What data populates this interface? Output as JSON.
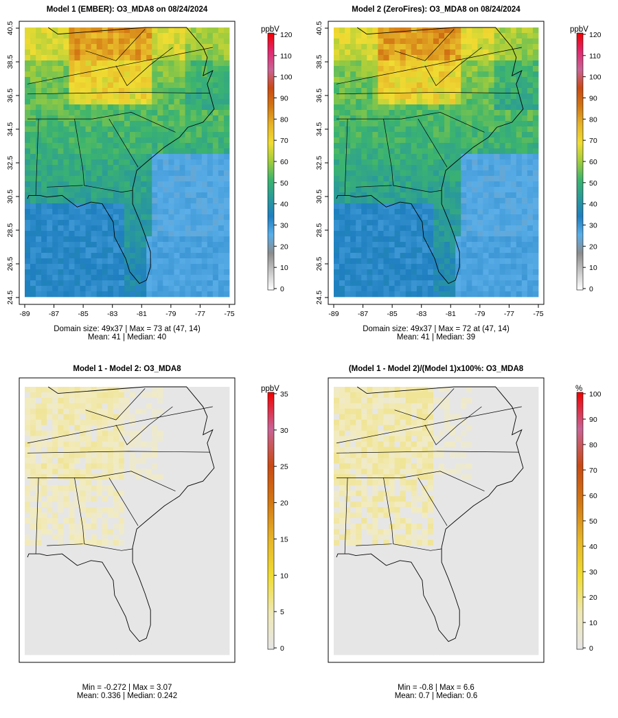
{
  "panels": [
    {
      "id": "p1",
      "title": "Model 1 (EMBER): O3_MDA8 on 08/24/2024",
      "stats_line1": "Domain size: 49x37 | Max = 73 at (47, 14)",
      "stats_line2": "Mean: 41 |  Median: 40",
      "colorbar_unit": "ppbV",
      "colorbar_ticks": [
        "0",
        "10",
        "20",
        "30",
        "40",
        "50",
        "60",
        "70",
        "80",
        "90",
        "100",
        "110",
        "120"
      ],
      "colorbar_max": 120
    },
    {
      "id": "p2",
      "title": "Model 2 (ZeroFires): O3_MDA8 on 08/24/2024",
      "stats_line1": "Domain size: 49x37 | Max = 72 at (47, 14)",
      "stats_line2": "Mean: 41 |  Median: 39",
      "colorbar_unit": "ppbV",
      "colorbar_ticks": [
        "0",
        "10",
        "20",
        "30",
        "40",
        "50",
        "60",
        "70",
        "80",
        "90",
        "100",
        "110",
        "120"
      ],
      "colorbar_max": 120
    },
    {
      "id": "p3",
      "title": "Model 1 - Model 2: O3_MDA8",
      "stats_line1": "Min = -0.272 | Max = 3.07",
      "stats_line2": "Mean: 0.336 |  Median: 0.242",
      "colorbar_unit": "ppbV",
      "colorbar_ticks": [
        "0",
        "5",
        "10",
        "15",
        "20",
        "25",
        "30",
        "35"
      ],
      "colorbar_max": 35
    },
    {
      "id": "p4",
      "title": "(Model 1 - Model 2)/(Model 1)x100%: O3_MDA8",
      "stats_line1": "Min = -0.8 | Max = 6.6",
      "stats_line2": "Mean: 0.7 |  Median: 0.6",
      "colorbar_unit": "%",
      "colorbar_ticks": [
        "0",
        "10",
        "20",
        "30",
        "40",
        "50",
        "60",
        "70",
        "80",
        "90",
        "100"
      ],
      "colorbar_max": 100
    }
  ],
  "chart_data": [
    {
      "type": "heatmap",
      "title": "Model 1 (EMBER): O3_MDA8 on 08/24/2024",
      "x_ticks": [
        "-89",
        "-87",
        "-85",
        "-83",
        "-81",
        "-79",
        "-77",
        "-75"
      ],
      "y_ticks": [
        "24.5",
        "26.5",
        "28.5",
        "30.5",
        "32.5",
        "34.5",
        "36.5",
        "38.5",
        "40.5"
      ],
      "xlim": [
        -89,
        -75
      ],
      "ylim": [
        24.5,
        40.5
      ],
      "grid_size": "49x37",
      "max": 73,
      "max_at": [
        47,
        14
      ],
      "mean": 41,
      "median": 40,
      "unit": "ppbV",
      "colorbar_range": [
        0,
        120
      ]
    },
    {
      "type": "heatmap",
      "title": "Model 2 (ZeroFires): O3_MDA8 on 08/24/2024",
      "x_ticks": [
        "-89",
        "-87",
        "-85",
        "-83",
        "-81",
        "-79",
        "-77",
        "-75"
      ],
      "y_ticks": [
        "24.5",
        "26.5",
        "28.5",
        "30.5",
        "32.5",
        "34.5",
        "36.5",
        "38.5",
        "40.5"
      ],
      "xlim": [
        -89,
        -75
      ],
      "ylim": [
        24.5,
        40.5
      ],
      "grid_size": "49x37",
      "max": 72,
      "max_at": [
        47,
        14
      ],
      "mean": 41,
      "median": 39,
      "unit": "ppbV",
      "colorbar_range": [
        0,
        120
      ]
    },
    {
      "type": "heatmap",
      "title": "Model 1 - Model 2: O3_MDA8",
      "min": -0.272,
      "max": 3.07,
      "mean": 0.336,
      "median": 0.242,
      "unit": "ppbV",
      "colorbar_range": [
        0,
        35
      ]
    },
    {
      "type": "heatmap",
      "title": "(Model 1 - Model 2)/(Model 1)x100%: O3_MDA8",
      "min": -0.8,
      "max": 6.6,
      "mean": 0.7,
      "median": 0.6,
      "unit": "%",
      "colorbar_range": [
        0,
        100
      ]
    }
  ],
  "colors": {
    "scale": [
      "#ffffff",
      "#c8c8c8",
      "#8c8c8c",
      "#5aaee8",
      "#1f7fc0",
      "#2a9a9a",
      "#3cb46e",
      "#a0cc3c",
      "#f0dc32",
      "#e6b428",
      "#d27814",
      "#c84a14",
      "#c86496",
      "#e0286e",
      "#f00000"
    ],
    "no_data_grey": "#e6e6e6"
  }
}
